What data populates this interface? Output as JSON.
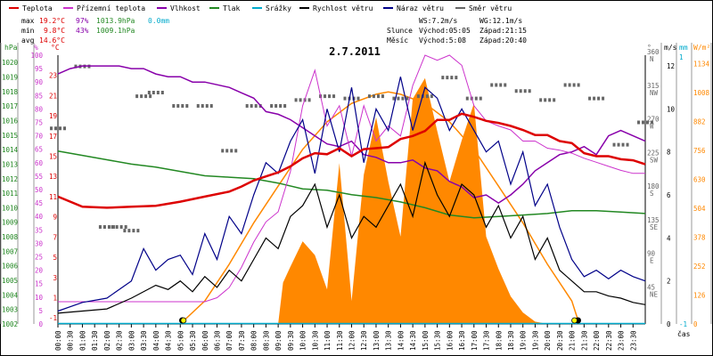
{
  "legend": [
    {
      "label": "Teplota",
      "color": "#dd0000"
    },
    {
      "label": "Přízemní teplota",
      "color": "#cc33cc"
    },
    {
      "label": "Vlhkost",
      "color": "#8800aa"
    },
    {
      "label": "Tlak",
      "color": "#228822"
    },
    {
      "label": "Srážky",
      "color": "#00aacc"
    },
    {
      "label": "Rychlost větru",
      "color": "#000000"
    },
    {
      "label": "Náraz větru",
      "color": "#000088"
    },
    {
      "label": "Směr větru",
      "color": "#666666"
    }
  ],
  "stats": {
    "max": {
      "label": "max",
      "temp": "19.2°C",
      "hum": "97%",
      "press": "1013.9hPa",
      "rain": "0.0mm"
    },
    "min": {
      "label": "min",
      "temp": "9.8°C",
      "hum": "43%",
      "press": "1009.1hPa"
    },
    "avg": {
      "label": "avg",
      "temp": "14.6°C"
    }
  },
  "wind_info": {
    "ws": "WS:7.2m/s",
    "wg": "WG:12.1m/s"
  },
  "sun": {
    "label": "Slunce",
    "rise": "Východ:05:05",
    "set": "Západ:21:15"
  },
  "moon": {
    "label": "Měsíc",
    "rise": "Východ:5:08",
    "set": "Západ:20:40"
  },
  "units": {
    "hpa": "hPa",
    "percent": "%",
    "celsius": "°C",
    "degrees": "°",
    "ms": "m/s",
    "mm": "mm",
    "wm2": "W/m²",
    "time": "čas"
  },
  "chart_data": {
    "type": "line",
    "title": "2.7.2011",
    "x_unit": "hour",
    "x_range": [
      0,
      24
    ],
    "x_ticks": [
      "00:00",
      "00:30",
      "01:00",
      "01:30",
      "02:00",
      "02:30",
      "03:00",
      "03:30",
      "04:00",
      "04:30",
      "05:00",
      "05:30",
      "06:00",
      "06:30",
      "07:00",
      "07:30",
      "08:00",
      "08:30",
      "09:00",
      "09:30",
      "10:00",
      "10:30",
      "11:00",
      "11:30",
      "12:00",
      "12:30",
      "13:00",
      "13:30",
      "14:00",
      "14:30",
      "15:00",
      "15:30",
      "16:00",
      "16:30",
      "17:00",
      "17:30",
      "18:00",
      "18:30",
      "19:00",
      "19:30",
      "20:00",
      "20:30",
      "21:00",
      "21:30",
      "22:00",
      "22:30",
      "23:00",
      "23:30"
    ],
    "axes": {
      "hpa": {
        "ticks": [
          "1002",
          "1003",
          "1004",
          "1005",
          "1006",
          "1007",
          "1008",
          "1009",
          "1010",
          "1011",
          "1012",
          "1013",
          "1014",
          "1015",
          "1016",
          "1017",
          "1018",
          "1019",
          "1020"
        ],
        "range": [
          1002,
          1020.5
        ]
      },
      "humidity": {
        "ticks": [
          "0",
          "5",
          "10",
          "15",
          "20",
          "25",
          "30",
          "35",
          "40",
          "45",
          "50",
          "55",
          "60",
          "65",
          "70",
          "75",
          "80",
          "85",
          "90",
          "95",
          "100"
        ],
        "range": [
          0,
          100
        ]
      },
      "temperature": {
        "ticks": [
          "-1",
          "1",
          "3",
          "5",
          "7",
          "9",
          "11",
          "13",
          "15",
          "17",
          "19",
          "21",
          "23"
        ],
        "range": [
          -1.6,
          25
        ]
      },
      "wind_dir": {
        "ticks": [
          "N",
          "NW",
          "W",
          "SW",
          "S",
          "SE",
          "E",
          "NE"
        ],
        "degree_ticks": [
          "360",
          "315",
          "270",
          "225",
          "180",
          "135",
          "90",
          "45"
        ],
        "range": [
          0,
          360
        ]
      },
      "wind_speed": {
        "ticks": [
          "0",
          "2",
          "4",
          "6",
          "8",
          "10",
          "12"
        ],
        "range": [
          0,
          12.5
        ]
      },
      "rain": {
        "ticks": [
          "-1",
          "1"
        ]
      },
      "radiation": {
        "ticks": [
          "0",
          "126",
          "252",
          "378",
          "504",
          "630",
          "756",
          "882",
          "1008",
          "1134"
        ],
        "range": [
          0,
          1170
        ]
      }
    },
    "series": [
      {
        "name": "Teplota",
        "unit": "°C",
        "color": "#dd0000",
        "x": [
          0,
          1,
          2,
          3,
          4,
          5,
          6,
          7,
          7.5,
          8,
          8.5,
          9,
          9.5,
          10,
          10.5,
          11,
          11.5,
          12,
          12.5,
          13,
          13.5,
          14,
          14.5,
          15,
          15.5,
          16,
          16.5,
          17,
          17.5,
          18,
          18.5,
          19,
          19.5,
          20,
          20.5,
          21,
          21.5,
          22,
          22.5,
          23,
          23.5,
          24
        ],
        "y": [
          11,
          10,
          9.9,
          10,
          10.1,
          10.5,
          11,
          11.5,
          12,
          12.6,
          13,
          13.4,
          14,
          14.8,
          15.3,
          15.2,
          15.8,
          15,
          15.7,
          15.8,
          15.9,
          16.7,
          17,
          17.5,
          18.6,
          18.6,
          19.2,
          18.9,
          18.5,
          18.3,
          18,
          17.6,
          17.1,
          17.1,
          16.5,
          16.3,
          15.3,
          15,
          15,
          14.7,
          14.6,
          14.2
        ]
      },
      {
        "name": "Přízemní teplota",
        "unit": "°C",
        "color": "#cc33cc",
        "x": [
          0,
          6,
          6.5,
          7,
          7.5,
          8,
          8.5,
          9,
          9.5,
          10,
          10.5,
          11,
          11.5,
          12,
          12.5,
          13,
          13.5,
          14,
          14.5,
          15,
          15.5,
          16,
          16.5,
          17,
          17.5,
          18,
          18.5,
          19,
          19.5,
          20,
          20.5,
          21,
          21.5,
          22,
          22.5,
          23,
          23.5,
          24
        ],
        "y": [
          0.6,
          0.6,
          1,
          2,
          4,
          6.5,
          8.5,
          9.5,
          13.5,
          20,
          23.5,
          18,
          20,
          15,
          20,
          16.5,
          18,
          17,
          22,
          25,
          24.5,
          25,
          24,
          20,
          18.5,
          18,
          17.6,
          16.5,
          16.5,
          15.8,
          15.6,
          15.3,
          14.8,
          14.4,
          14,
          13.6,
          13.3,
          13.3
        ]
      },
      {
        "name": "Vlhkost",
        "unit": "%",
        "color": "#8800aa",
        "x": [
          0,
          0.5,
          1,
          1.5,
          2,
          2.5,
          3,
          3.5,
          4,
          4.5,
          5,
          5.5,
          6,
          6.5,
          7,
          7.5,
          8,
          8.5,
          9,
          9.5,
          10,
          10.5,
          11,
          11.5,
          12,
          12.5,
          13,
          13.5,
          14,
          14.5,
          15,
          15.5,
          16,
          16.5,
          17,
          17.5,
          18,
          18.5,
          19,
          19.5,
          20,
          20.5,
          21,
          21.5,
          22,
          22.5,
          23,
          23.5,
          24
        ],
        "y": [
          93,
          95,
          96,
          96,
          96,
          96,
          95,
          95,
          93,
          92,
          92,
          90,
          90,
          89,
          88,
          86,
          84,
          79,
          78,
          76,
          73,
          70,
          67,
          66,
          68,
          63,
          62,
          60,
          60,
          61,
          58,
          57,
          53,
          51,
          47,
          48,
          45,
          48,
          52,
          57,
          60,
          63,
          64,
          66,
          63,
          70,
          72,
          70,
          68
        ]
      },
      {
        "name": "Tlak",
        "unit": "hPa",
        "color": "#228822",
        "x": [
          0,
          1,
          2,
          3,
          4,
          5,
          6,
          7,
          8,
          9,
          10,
          11,
          12,
          13,
          14,
          15,
          16,
          17,
          18,
          19,
          20,
          21,
          22,
          23,
          24
        ],
        "y": [
          1013.9,
          1013.6,
          1013.3,
          1013,
          1012.8,
          1012.5,
          1012.2,
          1012.1,
          1012,
          1011.7,
          1011.3,
          1011.2,
          1010.9,
          1010.7,
          1010.4,
          1010.0,
          1009.5,
          1009.3,
          1009.4,
          1009.5,
          1009.6,
          1009.8,
          1009.8,
          1009.7,
          1009.6
        ]
      },
      {
        "name": "Srážky",
        "unit": "mm",
        "color": "#00aacc",
        "x": [
          0,
          24
        ],
        "y": [
          0,
          0
        ]
      },
      {
        "name": "Rychlost větru",
        "unit": "m/s",
        "color": "#000000",
        "x": [
          0,
          2,
          3,
          4,
          4.5,
          5,
          5.5,
          6,
          6.5,
          7,
          7.5,
          8,
          8.5,
          9,
          9.5,
          10,
          10.5,
          11,
          11.5,
          12,
          12.5,
          13,
          13.5,
          14,
          14.5,
          15,
          15.5,
          16,
          16.5,
          17,
          17.5,
          18,
          18.5,
          19,
          19.5,
          20,
          20.5,
          21,
          21.5,
          22,
          22.5,
          23,
          23.5,
          24
        ],
        "y": [
          0.5,
          0.7,
          1.2,
          1.8,
          1.6,
          2,
          1.5,
          2.2,
          1.7,
          2.5,
          2,
          3,
          4,
          3.5,
          5,
          5.5,
          6.5,
          4.5,
          6,
          4,
          5,
          4.5,
          5.5,
          6.5,
          5,
          7.5,
          6,
          5,
          6.5,
          6,
          4.5,
          5.5,
          4,
          5,
          3,
          4,
          2.5,
          2,
          1.5,
          1.5,
          1.3,
          1.2,
          1,
          0.9
        ]
      },
      {
        "name": "Náraz větru",
        "unit": "m/s",
        "color": "#000088",
        "x": [
          0,
          1,
          2,
          3,
          3.5,
          4,
          4.5,
          5,
          5.5,
          6,
          6.5,
          7,
          7.5,
          8,
          8.5,
          9,
          9.5,
          10,
          10.5,
          11,
          11.5,
          12,
          12.5,
          13,
          13.5,
          14,
          14.5,
          15,
          15.5,
          16,
          16.5,
          17,
          17.5,
          18,
          18.5,
          19,
          19.5,
          20,
          20.5,
          21,
          21.5,
          22,
          22.5,
          23,
          23.5,
          24
        ],
        "y": [
          0.6,
          1,
          1.2,
          2,
          3.5,
          2.5,
          3,
          3.2,
          2.3,
          4.2,
          3,
          5,
          4.2,
          6,
          7.5,
          7,
          8.5,
          9.5,
          7,
          10,
          8,
          11,
          7.5,
          10,
          9,
          11.5,
          9,
          11,
          10.5,
          9,
          10,
          9,
          8,
          8.5,
          6.5,
          8,
          5.5,
          6.5,
          4.5,
          3,
          2.2,
          2.5,
          2.1,
          2.5,
          2.2,
          2
        ]
      },
      {
        "name": "Směr větru",
        "unit": "°",
        "color": "#666666",
        "x": [
          0,
          1,
          2,
          2.5,
          3,
          3.5,
          4,
          5,
          6,
          7,
          8,
          9,
          10,
          11,
          12,
          13,
          14,
          15,
          16,
          17,
          18,
          19,
          20,
          21,
          22,
          23,
          24
        ],
        "y": [
          262,
          345,
          130,
          130,
          125,
          305,
          310,
          292,
          292,
          232,
          292,
          292,
          300,
          305,
          302,
          305,
          302,
          305,
          330,
          302,
          320,
          312,
          300,
          320,
          302,
          240,
          270
        ]
      },
      {
        "name": "Sluneční záření",
        "unit": "W/m²",
        "color": "#ff8800",
        "type": "area",
        "x": [
          0,
          9,
          9.2,
          9.5,
          10,
          10.5,
          11,
          11.5,
          12,
          12.5,
          13,
          13.5,
          14,
          14.5,
          15,
          15.5,
          16,
          16.5,
          17,
          17.5,
          18,
          18.5,
          19,
          19.5,
          20,
          24
        ],
        "y": [
          0,
          0,
          180,
          250,
          360,
          300,
          150,
          700,
          100,
          650,
          900,
          620,
          380,
          980,
          1070,
          840,
          620,
          800,
          960,
          380,
          240,
          120,
          50,
          10,
          0,
          0
        ]
      },
      {
        "name": "Teoretické záření",
        "unit": "W/m²",
        "color": "#ff8800",
        "type": "line",
        "x": [
          5,
          6,
          7,
          8,
          9,
          10,
          11,
          12,
          13,
          13.5,
          14,
          15,
          16,
          17,
          18,
          19,
          20,
          21,
          21.3
        ],
        "y": [
          0,
          100,
          260,
          440,
          600,
          760,
          880,
          960,
          1000,
          1010,
          1000,
          960,
          880,
          760,
          600,
          440,
          260,
          100,
          0
        ]
      }
    ]
  }
}
